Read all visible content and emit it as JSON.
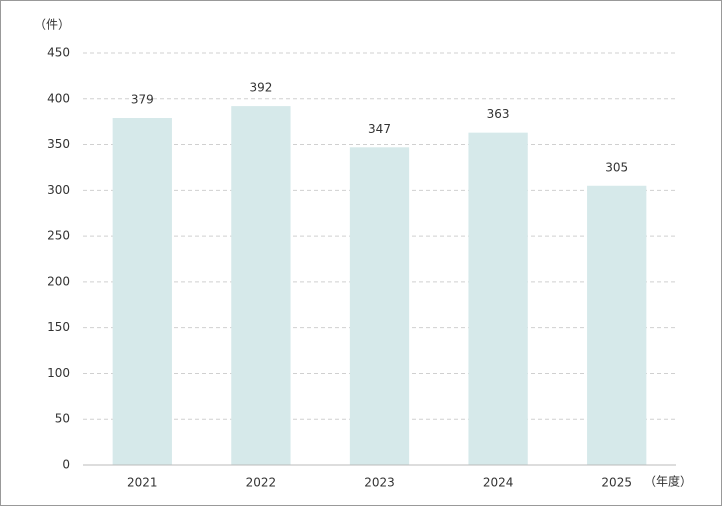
{
  "chart_data": {
    "type": "bar",
    "y_label": "（件）",
    "x_label": "（年度）",
    "categories": [
      "2021",
      "2022",
      "2023",
      "2024",
      "2025"
    ],
    "values": [
      379,
      392,
      347,
      363,
      305
    ],
    "color": "#d6e9ea",
    "ylim": [
      0,
      450
    ],
    "yticks": [
      0,
      50,
      100,
      150,
      200,
      250,
      300,
      350,
      400,
      450
    ],
    "grid": true
  }
}
